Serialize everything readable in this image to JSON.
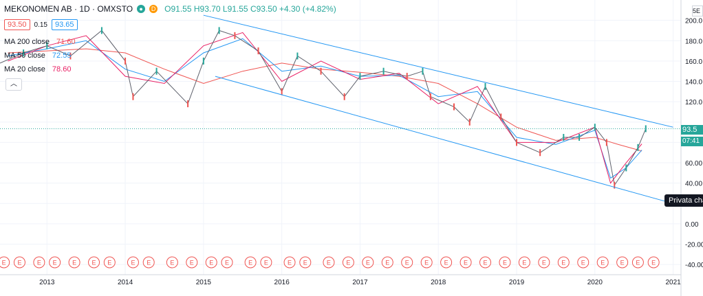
{
  "header": {
    "symbol": "MEKONOMEN AB · 1D · OMXSTO",
    "open": "O91.55",
    "high": "H93.70",
    "low": "L91.55",
    "close": "C93.50",
    "change": "+4.30 (+4.82%)",
    "d_badge": "D"
  },
  "trade": {
    "sell": "93.50",
    "spread": "0.15",
    "buy": "93.65"
  },
  "indicators": [
    {
      "label": "MA 200 close",
      "value": "71.60",
      "color": "#ef5350"
    },
    {
      "label": "MA 50 close",
      "value": "72.55",
      "color": "#2196f3"
    },
    {
      "label": "MA 20 close",
      "value": "78.60",
      "color": "#e91e63"
    }
  ],
  "last_price_tag": "93.5",
  "time_tag": "07:41",
  "tooltip": "Privata cha",
  "corner": "5E",
  "event_marker_label": "E",
  "colors": {
    "up": "#26a69a",
    "down": "#ef5350",
    "ma200": "#ef5350",
    "ma50": "#2196f3",
    "ma20": "#e91e63",
    "channel": "#2196f3"
  },
  "chart_data": {
    "type": "line",
    "title": "MEKONOMEN AB · 1D · OMXSTO",
    "xlabel": "",
    "ylabel": "",
    "x_ticks": [
      "2013",
      "2014",
      "2015",
      "2016",
      "2017",
      "2018",
      "2019",
      "2020",
      "2021"
    ],
    "y_ticks": [
      -40,
      -20,
      0,
      20,
      40,
      60,
      80,
      100,
      120,
      140,
      160,
      180,
      200
    ],
    "y_tick_labels": [
      "-40.00",
      "-20.00",
      "0.00",
      "",
      "40.00",
      "60.00",
      "",
      "",
      "120.0",
      "140.0",
      "160.0",
      "180.0",
      "200.0"
    ],
    "ylim": [
      -50,
      220
    ],
    "xlim": [
      2012.4,
      2021.1
    ],
    "grid": true,
    "last_price": 93.5,
    "series": [
      {
        "name": "MA 200 close",
        "x": [
          2012.5,
          2013.0,
          2013.5,
          2014.0,
          2014.5,
          2015.0,
          2015.5,
          2016.0,
          2016.5,
          2017.0,
          2017.5,
          2018.0,
          2018.5,
          2019.0,
          2019.5,
          2020.0,
          2020.3,
          2020.6
        ],
        "values": [
          168,
          170,
          172,
          168,
          152,
          138,
          150,
          158,
          152,
          149,
          145,
          138,
          118,
          95,
          82,
          85,
          78,
          71.6
        ]
      },
      {
        "name": "MA 50 close",
        "x": [
          2012.5,
          2013.0,
          2013.5,
          2014.0,
          2014.5,
          2015.0,
          2015.5,
          2016.0,
          2016.5,
          2017.0,
          2017.5,
          2018.0,
          2018.5,
          2019.0,
          2019.5,
          2020.0,
          2020.2,
          2020.4,
          2020.6
        ],
        "values": [
          165,
          172,
          180,
          152,
          140,
          168,
          182,
          150,
          155,
          145,
          146,
          125,
          130,
          85,
          78,
          92,
          45,
          55,
          72.55
        ]
      },
      {
        "name": "MA 20 close",
        "x": [
          2012.5,
          2013.0,
          2013.5,
          2014.0,
          2014.5,
          2015.0,
          2015.5,
          2016.0,
          2016.5,
          2017.0,
          2017.5,
          2018.0,
          2018.5,
          2019.0,
          2019.5,
          2020.0,
          2020.2,
          2020.4,
          2020.6
        ],
        "values": [
          160,
          175,
          185,
          145,
          138,
          175,
          188,
          140,
          160,
          142,
          148,
          118,
          135,
          80,
          80,
          95,
          40,
          60,
          78.6
        ]
      },
      {
        "name": "Close",
        "x": [
          2012.4,
          2012.7,
          2013.0,
          2013.3,
          2013.7,
          2014.0,
          2014.1,
          2014.4,
          2014.8,
          2015.0,
          2015.2,
          2015.4,
          2015.7,
          2016.0,
          2016.2,
          2016.5,
          2016.8,
          2017.0,
          2017.3,
          2017.6,
          2017.8,
          2017.9,
          2018.2,
          2018.4,
          2018.6,
          2018.8,
          2019.0,
          2019.3,
          2019.6,
          2019.8,
          2020.0,
          2020.15,
          2020.25,
          2020.4,
          2020.55,
          2020.65
        ],
        "values": [
          158,
          168,
          175,
          165,
          190,
          160,
          125,
          150,
          118,
          160,
          190,
          185,
          170,
          130,
          165,
          150,
          125,
          145,
          150,
          145,
          150,
          125,
          115,
          100,
          135,
          105,
          80,
          70,
          85,
          85,
          95,
          80,
          38,
          55,
          75,
          93.5
        ]
      },
      {
        "name": "Channel top",
        "x": [
          2015.0,
          2021.0
        ],
        "values": [
          205,
          95
        ]
      },
      {
        "name": "Channel bottom",
        "x": [
          2015.15,
          2021.0
        ],
        "values": [
          145,
          20
        ]
      }
    ]
  }
}
